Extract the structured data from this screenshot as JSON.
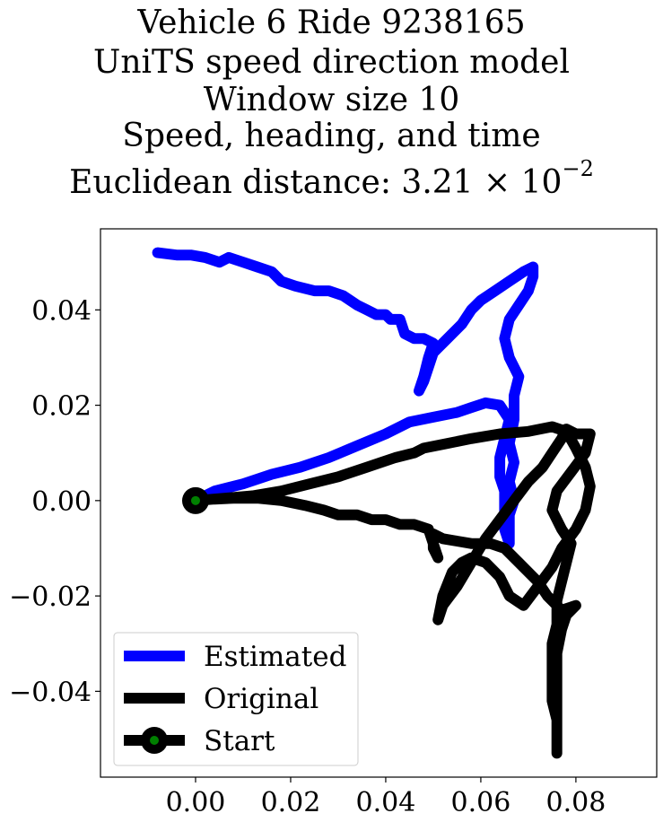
{
  "chart_data": {
    "type": "line",
    "title_lines": [
      "Vehicle 6 Ride 9238165",
      "UniTS speed direction model",
      "Window size 10",
      "Speed, heading, and time",
      "Euclidean distance: 3.21 × 10"
    ],
    "title_exponent": "−2",
    "xlim": [
      -0.02,
      0.097
    ],
    "ylim": [
      -0.058,
      0.057
    ],
    "x_ticks": [
      0.0,
      0.02,
      0.04,
      0.06,
      0.08
    ],
    "x_tick_labels": [
      "0.00",
      "0.02",
      "0.04",
      "0.06",
      "0.08"
    ],
    "y_ticks": [
      0.04,
      0.02,
      0.0,
      -0.02,
      -0.04
    ],
    "y_tick_labels": [
      "0.04",
      "0.02",
      "0.00",
      "−0.02",
      "−0.04"
    ],
    "grid": false,
    "legend_position": "lower-left",
    "series": [
      {
        "name": "Estimated",
        "color": "#0000ff",
        "points": [
          [
            0.0,
            0.0
          ],
          [
            0.004,
            0.002
          ],
          [
            0.01,
            0.0035
          ],
          [
            0.016,
            0.0055
          ],
          [
            0.022,
            0.007
          ],
          [
            0.028,
            0.009
          ],
          [
            0.034,
            0.0115
          ],
          [
            0.04,
            0.014
          ],
          [
            0.045,
            0.0165
          ],
          [
            0.05,
            0.0175
          ],
          [
            0.055,
            0.0185
          ],
          [
            0.058,
            0.0195
          ],
          [
            0.061,
            0.0205
          ],
          [
            0.064,
            0.02
          ],
          [
            0.066,
            0.017
          ],
          [
            0.065,
            0.013
          ],
          [
            0.064,
            0.009
          ],
          [
            0.064,
            0.005
          ],
          [
            0.065,
            0.002
          ],
          [
            0.065,
            -0.002
          ],
          [
            0.065,
            -0.006
          ],
          [
            0.066,
            -0.009
          ],
          [
            0.066,
            -0.007
          ],
          [
            0.066,
            -0.003
          ],
          [
            0.067,
            0.0
          ],
          [
            0.066,
            0.004
          ],
          [
            0.067,
            0.008
          ],
          [
            0.066,
            0.012
          ],
          [
            0.067,
            0.017
          ],
          [
            0.067,
            0.022
          ],
          [
            0.068,
            0.026
          ],
          [
            0.066,
            0.03
          ],
          [
            0.065,
            0.034
          ],
          [
            0.066,
            0.038
          ],
          [
            0.068,
            0.041
          ],
          [
            0.07,
            0.044
          ],
          [
            0.071,
            0.047
          ],
          [
            0.071,
            0.049
          ],
          [
            0.069,
            0.048
          ],
          [
            0.066,
            0.046
          ],
          [
            0.063,
            0.044
          ],
          [
            0.06,
            0.042
          ],
          [
            0.058,
            0.04
          ],
          [
            0.056,
            0.037
          ],
          [
            0.054,
            0.035
          ],
          [
            0.052,
            0.033
          ],
          [
            0.051,
            0.032
          ],
          [
            0.05,
            0.031
          ],
          [
            0.049,
            0.028
          ],
          [
            0.048,
            0.025
          ],
          [
            0.047,
            0.023
          ],
          [
            0.048,
            0.026
          ],
          [
            0.049,
            0.03
          ],
          [
            0.05,
            0.033
          ],
          [
            0.048,
            0.034
          ],
          [
            0.046,
            0.034
          ],
          [
            0.044,
            0.035
          ],
          [
            0.043,
            0.038
          ],
          [
            0.041,
            0.038
          ],
          [
            0.04,
            0.039
          ],
          [
            0.038,
            0.039
          ],
          [
            0.036,
            0.04
          ],
          [
            0.034,
            0.041
          ],
          [
            0.031,
            0.043
          ],
          [
            0.028,
            0.044
          ],
          [
            0.025,
            0.044
          ],
          [
            0.021,
            0.045
          ],
          [
            0.018,
            0.046
          ],
          [
            0.016,
            0.048
          ],
          [
            0.013,
            0.049
          ],
          [
            0.01,
            0.05
          ],
          [
            0.007,
            0.051
          ],
          [
            0.005,
            0.05
          ],
          [
            0.002,
            0.051
          ],
          [
            -0.001,
            0.0515
          ],
          [
            -0.004,
            0.0515
          ],
          [
            -0.008,
            0.052
          ]
        ]
      },
      {
        "name": "Original",
        "color": "#000000",
        "points": [
          [
            0.0,
            0.0
          ],
          [
            0.006,
            0.0005
          ],
          [
            0.012,
            0.001
          ],
          [
            0.018,
            0.002
          ],
          [
            0.024,
            0.0035
          ],
          [
            0.03,
            0.005
          ],
          [
            0.036,
            0.007
          ],
          [
            0.042,
            0.009
          ],
          [
            0.046,
            0.01
          ],
          [
            0.048,
            0.011
          ],
          [
            0.053,
            0.012
          ],
          [
            0.058,
            0.013
          ],
          [
            0.064,
            0.014
          ],
          [
            0.07,
            0.0145
          ],
          [
            0.075,
            0.0155
          ],
          [
            0.078,
            0.0145
          ],
          [
            0.08,
            0.011
          ],
          [
            0.082,
            0.007
          ],
          [
            0.083,
            0.003
          ],
          [
            0.082,
            -0.002
          ],
          [
            0.08,
            -0.006
          ],
          [
            0.077,
            -0.01
          ],
          [
            0.075,
            -0.014
          ],
          [
            0.072,
            -0.018
          ],
          [
            0.069,
            -0.022
          ],
          [
            0.066,
            -0.02
          ],
          [
            0.064,
            -0.016
          ],
          [
            0.061,
            -0.013
          ],
          [
            0.058,
            -0.012
          ],
          [
            0.056,
            -0.013
          ],
          [
            0.054,
            -0.015
          ],
          [
            0.052,
            -0.02
          ],
          [
            0.051,
            -0.025
          ],
          [
            0.052,
            -0.022
          ],
          [
            0.055,
            -0.018
          ],
          [
            0.058,
            -0.013
          ],
          [
            0.061,
            -0.008
          ],
          [
            0.064,
            -0.004
          ],
          [
            0.067,
            0.0
          ],
          [
            0.07,
            0.004
          ],
          [
            0.073,
            0.007
          ],
          [
            0.075,
            0.01
          ],
          [
            0.077,
            0.013
          ],
          [
            0.078,
            0.015
          ],
          [
            0.08,
            0.014
          ],
          [
            0.083,
            0.014
          ],
          [
            0.082,
            0.01
          ],
          [
            0.079,
            0.006
          ],
          [
            0.076,
            0.002
          ],
          [
            0.075,
            -0.002
          ],
          [
            0.077,
            -0.006
          ],
          [
            0.079,
            -0.009
          ],
          [
            0.078,
            -0.013
          ],
          [
            0.077,
            -0.017
          ],
          [
            0.076,
            -0.021
          ],
          [
            0.076,
            -0.026
          ],
          [
            0.075,
            -0.03
          ],
          [
            0.075,
            -0.034
          ],
          [
            0.075,
            -0.038
          ],
          [
            0.075,
            -0.042
          ],
          [
            0.076,
            -0.046
          ],
          [
            0.076,
            -0.05
          ],
          [
            0.076,
            -0.053
          ],
          [
            0.076,
            -0.049
          ],
          [
            0.076,
            -0.044
          ],
          [
            0.076,
            -0.038
          ],
          [
            0.076,
            -0.032
          ],
          [
            0.077,
            -0.027
          ],
          [
            0.078,
            -0.024
          ],
          [
            0.08,
            -0.022
          ],
          [
            0.077,
            -0.023
          ],
          [
            0.074,
            -0.02
          ],
          [
            0.072,
            -0.017
          ],
          [
            0.068,
            -0.013
          ],
          [
            0.065,
            -0.01
          ],
          [
            0.062,
            -0.009
          ],
          [
            0.058,
            -0.009
          ],
          [
            0.055,
            -0.0085
          ],
          [
            0.052,
            -0.008
          ],
          [
            0.05,
            -0.007
          ],
          [
            0.05,
            -0.01
          ],
          [
            0.051,
            -0.012
          ],
          [
            0.05,
            -0.009
          ],
          [
            0.049,
            -0.006
          ],
          [
            0.046,
            -0.005
          ],
          [
            0.043,
            -0.005
          ],
          [
            0.04,
            -0.004
          ],
          [
            0.037,
            -0.004
          ],
          [
            0.034,
            -0.003
          ],
          [
            0.03,
            -0.003
          ],
          [
            0.027,
            -0.002
          ],
          [
            0.023,
            -0.001
          ],
          [
            0.018,
            0.0
          ],
          [
            0.013,
            0.0005
          ],
          [
            0.008,
            0.0005
          ],
          [
            0.004,
            0.0003
          ],
          [
            0.0,
            0.0
          ]
        ]
      }
    ],
    "start_point": {
      "name": "Start",
      "x": 0.0,
      "y": 0.0,
      "marker_color": "#008000",
      "edge_color": "#000000"
    },
    "legend": [
      {
        "label": "Estimated",
        "color": "#0000ff",
        "kind": "line"
      },
      {
        "label": "Original",
        "color": "#000000",
        "kind": "line"
      },
      {
        "label": "Start",
        "color": "#000000",
        "kind": "line-marker",
        "marker_color": "#008000"
      }
    ]
  }
}
